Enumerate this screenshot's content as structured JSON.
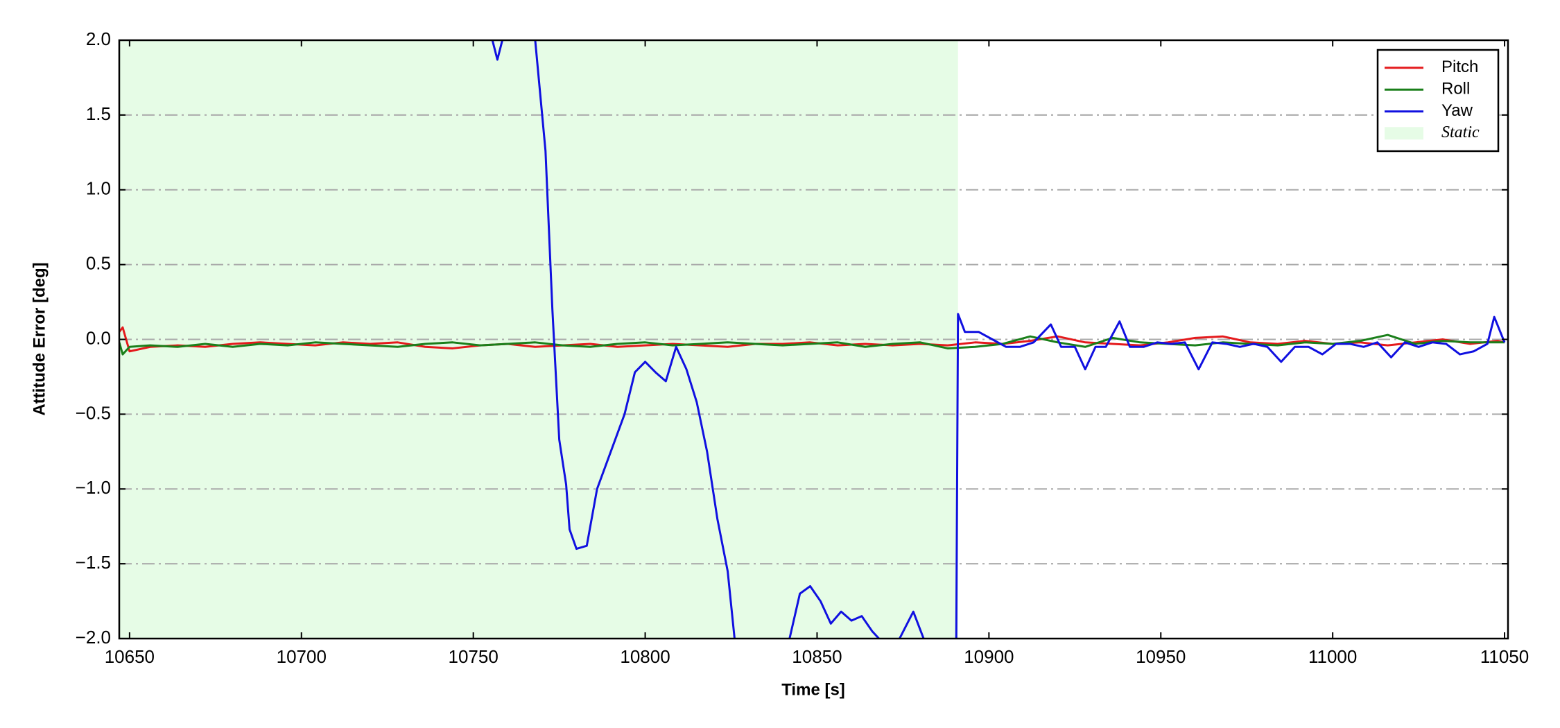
{
  "chart_data": {
    "type": "line",
    "xlabel": "Time [s]",
    "ylabel": "Attitude Error [deg]",
    "xlim": [
      10647,
      11051
    ],
    "ylim": [
      -2,
      2
    ],
    "xticks": [
      10650,
      10700,
      10750,
      10800,
      10850,
      10900,
      10950,
      11000,
      11050
    ],
    "yticks": [
      {
        "value": 2,
        "label": "2.0"
      },
      {
        "value": 1.5,
        "label": "1.5"
      },
      {
        "value": 1,
        "label": "1.0"
      },
      {
        "value": 0.5,
        "label": "0.5"
      },
      {
        "value": 0,
        "label": "0.0"
      },
      {
        "value": -0.5,
        "label": "−0.5"
      },
      {
        "value": -1,
        "label": "−1.0"
      },
      {
        "value": -1.5,
        "label": "−1.5"
      },
      {
        "value": -2,
        "label": "−2.0"
      }
    ],
    "grid": "y",
    "legend": "upper right",
    "shaded": {
      "label": "Static",
      "x": [
        10647,
        10891
      ],
      "color": "#e6fce6"
    },
    "series": [
      {
        "name": "Pitch",
        "color": "#e41a1c",
        "x": [
          10647,
          10648,
          10650,
          10656,
          10664,
          10672,
          10680,
          10688,
          10696,
          10704,
          10712,
          10720,
          10728,
          10736,
          10744,
          10752,
          10760,
          10768,
          10776,
          10784,
          10792,
          10800,
          10808,
          10816,
          10824,
          10832,
          10840,
          10848,
          10856,
          10864,
          10872,
          10880,
          10888,
          10896,
          10904,
          10912,
          10920,
          10928,
          10936,
          10944,
          10952,
          10960,
          10968,
          10976,
          10984,
          10992,
          11000,
          11008,
          11016,
          11024,
          11032,
          11040,
          11048,
          11050
        ],
        "values": [
          0.05,
          0.08,
          -0.08,
          -0.05,
          -0.04,
          -0.05,
          -0.03,
          -0.02,
          -0.03,
          -0.04,
          -0.02,
          -0.03,
          -0.02,
          -0.05,
          -0.06,
          -0.04,
          -0.03,
          -0.05,
          -0.04,
          -0.03,
          -0.05,
          -0.04,
          -0.03,
          -0.04,
          -0.05,
          -0.03,
          -0.03,
          -0.02,
          -0.04,
          -0.03,
          -0.04,
          -0.03,
          -0.04,
          -0.02,
          -0.03,
          -0.01,
          0.02,
          -0.02,
          -0.03,
          -0.04,
          -0.02,
          0.01,
          0.02,
          -0.02,
          -0.03,
          -0.01,
          -0.03,
          -0.02,
          -0.04,
          -0.02,
          0.0,
          -0.03,
          -0.01,
          -0.02
        ]
      },
      {
        "name": "Roll",
        "color": "#1a7f1a",
        "x": [
          10647,
          10648,
          10650,
          10656,
          10664,
          10672,
          10680,
          10688,
          10696,
          10704,
          10712,
          10720,
          10728,
          10736,
          10744,
          10752,
          10760,
          10768,
          10776,
          10784,
          10792,
          10800,
          10808,
          10816,
          10824,
          10832,
          10840,
          10848,
          10856,
          10864,
          10872,
          10880,
          10888,
          10896,
          10904,
          10912,
          10920,
          10928,
          10936,
          10944,
          10952,
          10960,
          10968,
          10976,
          10984,
          10992,
          11000,
          11008,
          11016,
          11024,
          11032,
          11040,
          11048,
          11050
        ],
        "values": [
          -0.02,
          -0.1,
          -0.05,
          -0.04,
          -0.05,
          -0.03,
          -0.05,
          -0.03,
          -0.04,
          -0.02,
          -0.03,
          -0.04,
          -0.05,
          -0.03,
          -0.02,
          -0.04,
          -0.03,
          -0.02,
          -0.04,
          -0.05,
          -0.03,
          -0.02,
          -0.04,
          -0.03,
          -0.02,
          -0.03,
          -0.04,
          -0.03,
          -0.02,
          -0.05,
          -0.03,
          -0.02,
          -0.06,
          -0.05,
          -0.03,
          0.02,
          -0.02,
          -0.05,
          0.01,
          -0.02,
          -0.03,
          -0.04,
          -0.02,
          -0.03,
          -0.04,
          -0.02,
          -0.03,
          -0.01,
          0.03,
          -0.03,
          -0.01,
          -0.02,
          -0.02,
          -0.02
        ]
      },
      {
        "name": "Yaw",
        "color": "#1010e0",
        "x": [
          10755,
          10757,
          10759,
          10763,
          10768,
          10771,
          10773,
          10775,
          10777,
          10778,
          10780,
          10783,
          10786,
          10790,
          10794,
          10797,
          10800,
          10803,
          10806,
          10809,
          10812,
          10815,
          10818,
          10821,
          10824,
          10826,
          10834,
          10842,
          10845,
          10848,
          10851,
          10854,
          10857,
          10860,
          10863,
          10866,
          10868,
          10871,
          10874,
          10878,
          10881,
          10886,
          10890.5,
          10891,
          10893,
          10897,
          10901,
          10905,
          10909,
          10913,
          10918,
          10921,
          10925,
          10928,
          10931,
          10934,
          10938,
          10941,
          10945,
          10949,
          10953,
          10957,
          10961,
          10965,
          10969,
          10973,
          10977,
          10981,
          10985,
          10989,
          10993,
          10997,
          11001,
          11005,
          11009,
          11013,
          11017,
          11021,
          11025,
          11029,
          11033,
          11037,
          11041,
          11045,
          11047,
          11050
        ],
        "values": [
          2.05,
          1.87,
          2.05,
          null,
          2.0,
          1.26,
          0.2,
          -0.67,
          -0.97,
          -1.27,
          -1.4,
          -1.38,
          -1.0,
          -0.75,
          -0.5,
          -0.22,
          -0.15,
          -0.22,
          -0.28,
          -0.05,
          -0.2,
          -0.42,
          -0.75,
          -1.2,
          -1.55,
          -2.0,
          null,
          -2.0,
          -1.7,
          -1.65,
          -1.75,
          -1.9,
          -1.82,
          -1.88,
          -1.85,
          -1.95,
          -2.0,
          null,
          -2.0,
          -1.82,
          -2.0,
          null,
          -2.0,
          0.17,
          0.05,
          0.05,
          0.0,
          -0.05,
          -0.05,
          -0.02,
          0.1,
          -0.05,
          -0.05,
          -0.2,
          -0.05,
          -0.05,
          0.12,
          -0.05,
          -0.05,
          -0.02,
          -0.03,
          -0.02,
          -0.2,
          -0.02,
          -0.03,
          -0.05,
          -0.03,
          -0.05,
          -0.15,
          -0.05,
          -0.05,
          -0.1,
          -0.03,
          -0.03,
          -0.05,
          -0.02,
          -0.12,
          -0.02,
          -0.05,
          -0.02,
          -0.03,
          -0.1,
          -0.08,
          -0.03,
          0.15,
          -0.02
        ]
      }
    ]
  }
}
